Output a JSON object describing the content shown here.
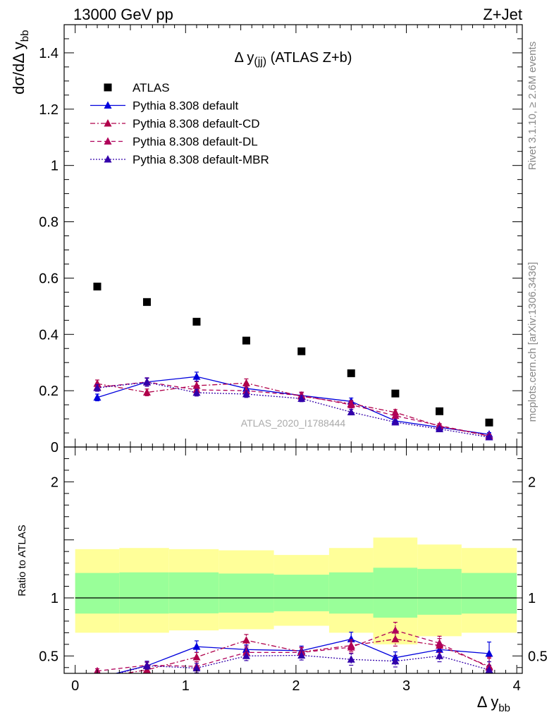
{
  "header": {
    "left_title": "13000 GeV pp",
    "right_title": "Z+Jet"
  },
  "side_labels": {
    "rivet": "Rivet 3.1.10, ≥ 2.6M events",
    "mcplots": "mcplots.cern.ch [arXiv:1306.3436]"
  },
  "chart_data": [
    {
      "type": "scatter",
      "title": "Δ y(jj) (ATLAS Z+b)",
      "analysis_id": "ATLAS_2020_I1788444",
      "ylabel": "dσ/dΔ y_bb",
      "xlabel": "Δ y_bb",
      "xlim": [
        -0.1,
        4.05
      ],
      "ylim": [
        0,
        1.5
      ],
      "y_ticks": [
        "0",
        "0.2",
        "0.4",
        "0.6",
        "0.8",
        "1",
        "1.2",
        "1.4"
      ],
      "legend_position": "top-left",
      "bin_edges": [
        0,
        0.4,
        0.85,
        1.3,
        1.8,
        2.3,
        2.7,
        3.1,
        3.5,
        4.0
      ],
      "x": [
        0.2,
        0.65,
        1.1,
        1.55,
        2.05,
        2.5,
        2.9,
        3.3,
        3.75
      ],
      "series": [
        {
          "name": "ATLAS",
          "color": "#000000",
          "marker": "square",
          "line": "none",
          "values": [
            0.57,
            0.515,
            0.445,
            0.378,
            0.34,
            0.262,
            0.19,
            0.127,
            0.087
          ],
          "errors": [
            0.006,
            0.006,
            0.005,
            0.005,
            0.004,
            0.004,
            0.003,
            0.003,
            0.003
          ]
        },
        {
          "name": "Pythia 8.308 default",
          "color": "#0000dd",
          "marker": "triangle",
          "line": "solid",
          "values": [
            0.176,
            0.231,
            0.25,
            0.208,
            0.183,
            0.162,
            0.093,
            0.07,
            0.045
          ],
          "errors": [
            0.012,
            0.015,
            0.016,
            0.014,
            0.012,
            0.012,
            0.009,
            0.007,
            0.006
          ]
        },
        {
          "name": "Pythia 8.308 default-CD",
          "color": "#b0004a",
          "marker": "triangle",
          "line": "dashdot",
          "values": [
            0.225,
            0.194,
            0.218,
            0.227,
            0.18,
            0.154,
            0.123,
            0.074,
            0.039
          ],
          "errors": [
            0.013,
            0.012,
            0.014,
            0.015,
            0.012,
            0.011,
            0.01,
            0.007,
            0.005
          ]
        },
        {
          "name": "Pythia 8.308 default-DL",
          "color": "#b0005a",
          "marker": "triangle",
          "line": "dashed",
          "values": [
            0.212,
            0.231,
            0.203,
            0.2,
            0.183,
            0.15,
            0.111,
            0.076,
            0.04
          ],
          "errors": [
            0.013,
            0.014,
            0.013,
            0.013,
            0.012,
            0.011,
            0.01,
            0.007,
            0.005
          ]
        },
        {
          "name": "Pythia 8.308 default-MBR",
          "color": "#3300aa",
          "marker": "triangle",
          "line": "dotted",
          "values": [
            0.21,
            0.23,
            0.193,
            0.188,
            0.172,
            0.124,
            0.088,
            0.064,
            0.035
          ],
          "errors": [
            0.012,
            0.014,
            0.012,
            0.012,
            0.011,
            0.01,
            0.008,
            0.006,
            0.005
          ]
        }
      ]
    },
    {
      "type": "scatter",
      "title": "",
      "ylabel": "Ratio to ATLAS",
      "xlabel": "Δ y_bb",
      "xlim": [
        -0.1,
        4.05
      ],
      "ylim": [
        0.35,
        2.3
      ],
      "y_ticks": [
        "0.5",
        "1",
        "2"
      ],
      "x_ticks": [
        "0",
        "1",
        "2",
        "3",
        "4"
      ],
      "reference_line": 1,
      "bands": {
        "stat_color": "#99ff99",
        "total_color": "#ffff99",
        "inner_lo": [
          0.865,
          0.865,
          0.867,
          0.873,
          0.885,
          0.865,
          0.83,
          0.855,
          0.865
        ],
        "inner_hi": [
          1.215,
          1.22,
          1.22,
          1.21,
          1.2,
          1.22,
          1.26,
          1.25,
          1.215
        ],
        "outer_lo": [
          0.7,
          0.7,
          0.72,
          0.73,
          0.76,
          0.7,
          0.6,
          0.67,
          0.7
        ],
        "outer_hi": [
          1.42,
          1.43,
          1.42,
          1.41,
          1.37,
          1.43,
          1.52,
          1.46,
          1.43
        ]
      },
      "x": [
        0.2,
        0.65,
        1.1,
        1.55,
        2.05,
        2.5,
        2.9,
        3.3,
        3.75
      ],
      "series": [
        {
          "name": "Pythia 8.308 default",
          "color": "#0000dd",
          "line": "solid",
          "values": [
            0.31,
            0.415,
            0.58,
            0.555,
            0.545,
            0.645,
            0.485,
            0.555,
            0.52
          ],
          "errors": [
            0.02,
            0.04,
            0.05,
            0.04,
            0.04,
            0.06,
            0.05,
            0.05,
            0.1
          ]
        },
        {
          "name": "Pythia 8.308 default-CD",
          "color": "#b0004a",
          "line": "dashdot",
          "values": [
            0.31,
            0.38,
            0.49,
            0.635,
            0.535,
            0.59,
            0.645,
            0.59,
            0.41
          ],
          "errors": [
            0.02,
            0.03,
            0.04,
            0.05,
            0.04,
            0.05,
            0.06,
            0.06,
            0.08
          ]
        },
        {
          "name": "Pythia 8.308 default-DL",
          "color": "#b0005a",
          "line": "dashed",
          "values": [
            0.37,
            0.42,
            0.41,
            0.53,
            0.53,
            0.575,
            0.72,
            0.61,
            0.4
          ],
          "errors": [
            0.02,
            0.03,
            0.04,
            0.04,
            0.04,
            0.05,
            0.07,
            0.06,
            0.08
          ]
        },
        {
          "name": "Pythia 8.308 default-MBR",
          "color": "#3300aa",
          "line": "dotted",
          "values": [
            0.3,
            0.415,
            0.395,
            0.5,
            0.505,
            0.47,
            0.455,
            0.5,
            0.38
          ],
          "errors": [
            0.02,
            0.03,
            0.04,
            0.04,
            0.04,
            0.05,
            0.05,
            0.05,
            0.07
          ]
        }
      ]
    }
  ]
}
